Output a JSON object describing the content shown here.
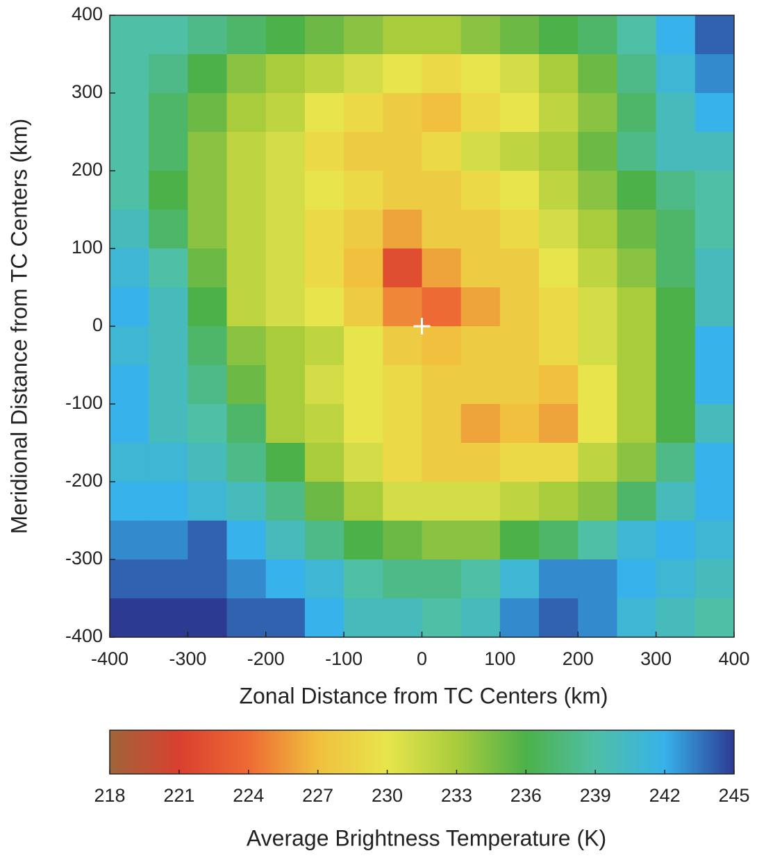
{
  "chart_data": {
    "type": "heatmap",
    "xlabel": "Zonal Distance from TC Centers (km)",
    "ylabel": "Meridional Distance from TC Centers (km)",
    "colorbar_label": "Average Brightness Temperature (K)",
    "x": [
      -375,
      -325,
      -275,
      -225,
      -175,
      -125,
      -75,
      -25,
      25,
      75,
      125,
      175,
      225,
      275,
      325,
      375
    ],
    "y": [
      375,
      325,
      275,
      225,
      175,
      125,
      75,
      25,
      -25,
      -75,
      -125,
      -175,
      -225,
      -275,
      -325,
      -375
    ],
    "values": [
      [
        239,
        239,
        238,
        237,
        236,
        235,
        234,
        233,
        233,
        234,
        235,
        236,
        237,
        239,
        242,
        244
      ],
      [
        239,
        238,
        236,
        234,
        233,
        232,
        231,
        230,
        229,
        230,
        231,
        233,
        235,
        238,
        241,
        243
      ],
      [
        239,
        237,
        235,
        233,
        232,
        230,
        229,
        228,
        227,
        229,
        230,
        232,
        234,
        237,
        240,
        242
      ],
      [
        239,
        237,
        234,
        232,
        231,
        229,
        228,
        228,
        229,
        231,
        232,
        233,
        235,
        238,
        240,
        240
      ],
      [
        239,
        236,
        234,
        232,
        231,
        230,
        229,
        228,
        228,
        229,
        230,
        232,
        234,
        236,
        238,
        239
      ],
      [
        240,
        237,
        234,
        232,
        231,
        229,
        228,
        226,
        228,
        228,
        229,
        231,
        233,
        235,
        237,
        239
      ],
      [
        241,
        239,
        235,
        232,
        231,
        229,
        227,
        222,
        226,
        228,
        228,
        230,
        232,
        234,
        237,
        240
      ],
      [
        242,
        240,
        236,
        232,
        231,
        230,
        228,
        225,
        224,
        226,
        228,
        229,
        231,
        233,
        236,
        240
      ],
      [
        241,
        240,
        237,
        234,
        233,
        232,
        230,
        228,
        227,
        228,
        228,
        229,
        231,
        233,
        236,
        242
      ],
      [
        242,
        240,
        238,
        235,
        233,
        231,
        230,
        229,
        228,
        228,
        228,
        227,
        230,
        233,
        236,
        242
      ],
      [
        242,
        240,
        239,
        237,
        233,
        232,
        230,
        229,
        228,
        226,
        227,
        226,
        230,
        233,
        236,
        240
      ],
      [
        241,
        241,
        240,
        238,
        236,
        233,
        231,
        229,
        228,
        228,
        229,
        229,
        232,
        234,
        238,
        242
      ],
      [
        242,
        242,
        241,
        240,
        238,
        235,
        233,
        231,
        231,
        231,
        232,
        233,
        234,
        237,
        240,
        242
      ],
      [
        243,
        243,
        244,
        242,
        240,
        238,
        236,
        235,
        234,
        234,
        236,
        237,
        239,
        241,
        242,
        241
      ],
      [
        244,
        244,
        244,
        243,
        242,
        241,
        239,
        238,
        238,
        239,
        241,
        243,
        243,
        242,
        241,
        240
      ],
      [
        245,
        245,
        245,
        244,
        244,
        242,
        240,
        240,
        239,
        240,
        243,
        244,
        243,
        241,
        240,
        239
      ]
    ],
    "xlim": [
      -400,
      400
    ],
    "ylim": [
      -400,
      400
    ],
    "xticks": [
      -400,
      -300,
      -200,
      -100,
      0,
      100,
      200,
      300,
      400
    ],
    "yticks": [
      -400,
      -300,
      -200,
      -100,
      0,
      100,
      200,
      300,
      400
    ],
    "clim": [
      218,
      245
    ],
    "cticks": [
      218,
      221,
      224,
      227,
      230,
      233,
      236,
      239,
      242,
      245
    ],
    "colormap": [
      "#a0653a",
      "#d9402f",
      "#ee6a35",
      "#f0c03e",
      "#e8e54c",
      "#a9cc3c",
      "#4db14a",
      "#4fbfa5",
      "#37b2ea",
      "#2c3a92"
    ]
  }
}
